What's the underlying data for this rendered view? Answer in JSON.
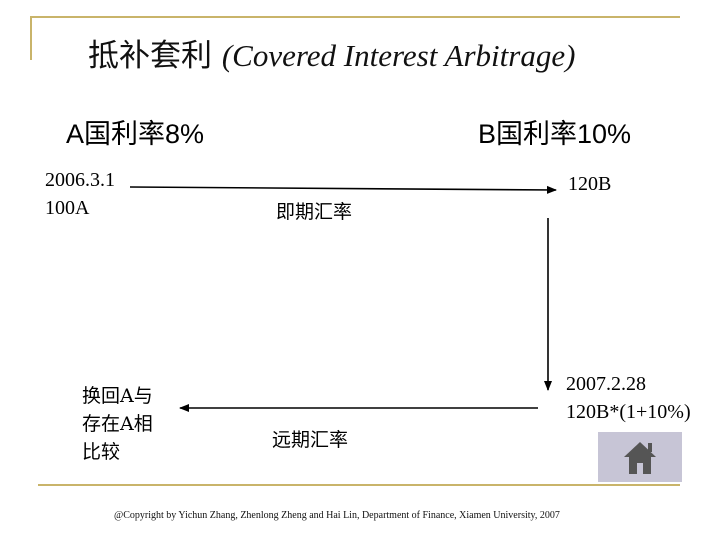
{
  "title": {
    "cn": "抵补套利",
    "en": "(Covered Interest Arbitrage)"
  },
  "country_a": {
    "label": "A国利率8%"
  },
  "country_b": {
    "label": "B国利率10%"
  },
  "start": {
    "date": "2006.3.1",
    "amount": "100A"
  },
  "spot_rate_label": "即期汇率",
  "b_amount": "120B",
  "maturity": {
    "date": "2007.2.28",
    "amount": "120B*(1+10%)"
  },
  "forward_rate_label": "远期汇率",
  "exchange_back": {
    "line1": "换回A与",
    "line2": "存在A相",
    "line3": "比较"
  },
  "home_button": {
    "icon": "home-icon"
  },
  "footer": "@Copyright by Yichun Zhang, Zhenlong Zheng and Hai Lin, Department of Finance, Xiamen University, 2007",
  "colors": {
    "accent_line": "#c9b46a",
    "home_button_bg": "#c7c5d6",
    "home_icon": "#555555"
  }
}
